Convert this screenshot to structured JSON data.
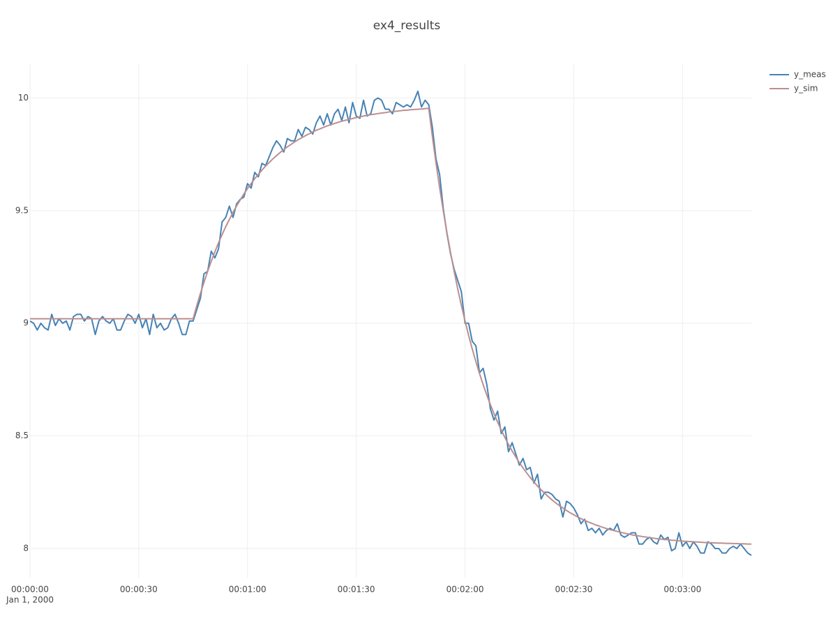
{
  "chart_data": {
    "type": "line",
    "title": "ex4_results",
    "x_date": "Jan 1, 2000",
    "x": [
      0,
      1,
      2,
      3,
      4,
      5,
      6,
      7,
      8,
      9,
      10,
      11,
      12,
      13,
      14,
      15,
      16,
      17,
      18,
      19,
      20,
      21,
      22,
      23,
      24,
      25,
      26,
      27,
      28,
      29,
      30,
      31,
      32,
      33,
      34,
      35,
      36,
      37,
      38,
      39,
      40,
      41,
      42,
      43,
      44,
      45,
      46,
      47,
      48,
      49,
      50,
      51,
      52,
      53,
      54,
      55,
      56,
      57,
      58,
      59,
      60,
      61,
      62,
      63,
      64,
      65,
      66,
      67,
      68,
      69,
      70,
      71,
      72,
      73,
      74,
      75,
      76,
      77,
      78,
      79,
      80,
      81,
      82,
      83,
      84,
      85,
      86,
      87,
      88,
      89,
      90,
      91,
      92,
      93,
      94,
      95,
      96,
      97,
      98,
      99,
      100,
      101,
      102,
      103,
      104,
      105,
      106,
      107,
      108,
      109,
      110,
      111,
      112,
      113,
      114,
      115,
      116,
      117,
      118,
      119,
      120,
      121,
      122,
      123,
      124,
      125,
      126,
      127,
      128,
      129,
      130,
      131,
      132,
      133,
      134,
      135,
      136,
      137,
      138,
      139,
      140,
      141,
      142,
      143,
      144,
      145,
      146,
      147,
      148,
      149,
      150,
      151,
      152,
      153,
      154,
      155,
      156,
      157,
      158,
      159,
      160,
      161,
      162,
      163,
      164,
      165,
      166,
      167,
      168,
      169,
      170,
      171,
      172,
      173,
      174,
      175,
      176,
      177,
      178,
      179,
      180,
      181,
      182,
      183,
      184,
      185,
      186,
      187,
      188,
      189,
      190,
      191,
      192,
      193,
      194,
      195,
      196,
      197,
      198,
      199
    ],
    "series": [
      {
        "name": "y_meas",
        "color": "#4682b4",
        "values": [
          9.01,
          9.0,
          8.97,
          9.0,
          8.98,
          8.97,
          9.04,
          8.99,
          9.02,
          9.0,
          9.01,
          8.97,
          9.03,
          9.04,
          9.04,
          9.01,
          9.03,
          9.02,
          8.95,
          9.01,
          9.03,
          9.01,
          9.0,
          9.02,
          8.97,
          8.97,
          9.01,
          9.04,
          9.03,
          9.0,
          9.04,
          8.98,
          9.02,
          8.95,
          9.04,
          8.98,
          9.0,
          8.97,
          8.98,
          9.02,
          9.04,
          9.0,
          8.95,
          8.95,
          9.01,
          9.01,
          9.06,
          9.11,
          9.22,
          9.23,
          9.32,
          9.29,
          9.33,
          9.45,
          9.47,
          9.52,
          9.47,
          9.53,
          9.55,
          9.56,
          9.62,
          9.6,
          9.67,
          9.65,
          9.71,
          9.7,
          9.74,
          9.78,
          9.81,
          9.79,
          9.76,
          9.82,
          9.81,
          9.81,
          9.86,
          9.83,
          9.87,
          9.86,
          9.84,
          9.89,
          9.92,
          9.88,
          9.93,
          9.88,
          9.93,
          9.95,
          9.9,
          9.96,
          9.89,
          9.98,
          9.92,
          9.91,
          9.99,
          9.92,
          9.93,
          9.99,
          10.0,
          9.99,
          9.95,
          9.95,
          9.93,
          9.98,
          9.97,
          9.96,
          9.97,
          9.96,
          9.99,
          10.03,
          9.96,
          9.99,
          9.97,
          9.87,
          9.73,
          9.66,
          9.51,
          9.4,
          9.31,
          9.24,
          9.19,
          9.14,
          9.0,
          9.0,
          8.92,
          8.9,
          8.78,
          8.8,
          8.73,
          8.62,
          8.57,
          8.61,
          8.51,
          8.54,
          8.43,
          8.47,
          8.42,
          8.37,
          8.4,
          8.35,
          8.36,
          8.29,
          8.33,
          8.22,
          8.25,
          8.25,
          8.24,
          8.22,
          8.21,
          8.14,
          8.21,
          8.2,
          8.18,
          8.15,
          8.11,
          8.13,
          8.08,
          8.09,
          8.07,
          8.09,
          8.06,
          8.08,
          8.09,
          8.08,
          8.11,
          8.06,
          8.05,
          8.06,
          8.07,
          8.07,
          8.02,
          8.02,
          8.04,
          8.05,
          8.03,
          8.02,
          8.06,
          8.04,
          8.05,
          7.99,
          8.0,
          8.07,
          8.01,
          8.03,
          8.0,
          8.03,
          8.01,
          7.98,
          7.98,
          8.03,
          8.02,
          8.0,
          8.0,
          7.98,
          7.98,
          8.0,
          8.01,
          8.0,
          8.02,
          8.0,
          7.98,
          7.97
        ]
      },
      {
        "name": "y_sim",
        "color": "#bc8f8f",
        "values": [
          9.02,
          9.02,
          9.02,
          9.02,
          9.02,
          9.02,
          9.02,
          9.02,
          9.02,
          9.02,
          9.02,
          9.02,
          9.02,
          9.02,
          9.02,
          9.02,
          9.02,
          9.02,
          9.02,
          9.02,
          9.02,
          9.02,
          9.02,
          9.02,
          9.02,
          9.02,
          9.02,
          9.02,
          9.02,
          9.02,
          9.02,
          9.02,
          9.02,
          9.02,
          9.02,
          9.02,
          9.02,
          9.02,
          9.02,
          9.02,
          9.02,
          9.02,
          9.02,
          9.02,
          9.02,
          9.02,
          9.078,
          9.132,
          9.182,
          9.23,
          9.275,
          9.317,
          9.357,
          9.394,
          9.429,
          9.461,
          9.492,
          9.521,
          9.548,
          9.574,
          9.598,
          9.62,
          9.642,
          9.661,
          9.68,
          9.698,
          9.714,
          9.73,
          9.744,
          9.758,
          9.771,
          9.783,
          9.794,
          9.805,
          9.815,
          9.824,
          9.833,
          9.841,
          9.849,
          9.857,
          9.863,
          9.87,
          9.876,
          9.882,
          9.887,
          9.892,
          9.897,
          9.901,
          9.905,
          9.909,
          9.913,
          9.916,
          9.92,
          9.923,
          9.926,
          9.928,
          9.931,
          9.933,
          9.935,
          9.938,
          9.94,
          9.941,
          9.943,
          9.945,
          9.946,
          9.948,
          9.949,
          9.95,
          9.951,
          9.953,
          9.954,
          9.829,
          9.712,
          9.602,
          9.5,
          9.404,
          9.315,
          9.231,
          9.152,
          9.079,
          9.011,
          8.946,
          8.886,
          8.83,
          8.777,
          8.728,
          8.682,
          8.639,
          8.599,
          8.561,
          8.526,
          8.493,
          8.462,
          8.433,
          8.407,
          8.381,
          8.358,
          8.336,
          8.315,
          8.296,
          8.277,
          8.261,
          8.245,
          8.23,
          8.216,
          8.203,
          8.191,
          8.18,
          8.169,
          8.159,
          8.15,
          8.141,
          8.133,
          8.125,
          8.118,
          8.112,
          8.105,
          8.1,
          8.094,
          8.089,
          8.084,
          8.08,
          8.076,
          8.072,
          8.068,
          8.065,
          8.061,
          8.058,
          8.056,
          8.053,
          8.051,
          8.048,
          8.046,
          8.044,
          8.042,
          8.04,
          8.039,
          8.037,
          8.036,
          8.034,
          8.033,
          8.032,
          8.031,
          8.03,
          8.029,
          8.028,
          8.027,
          8.026,
          8.026,
          8.025,
          8.024,
          8.024,
          8.023,
          8.023,
          8.022,
          8.022,
          8.021,
          8.021,
          8.02,
          8.02
        ]
      }
    ],
    "xlim": [
      0,
      199
    ],
    "ylim": [
      7.87,
      10.15
    ],
    "xticks": [
      {
        "value": 0,
        "label": "00:00:00"
      },
      {
        "value": 30,
        "label": "00:00:30"
      },
      {
        "value": 60,
        "label": "00:01:00"
      },
      {
        "value": 90,
        "label": "00:01:30"
      },
      {
        "value": 120,
        "label": "00:02:00"
      },
      {
        "value": 150,
        "label": "00:02:30"
      },
      {
        "value": 180,
        "label": "00:03:00"
      }
    ],
    "yticks": [
      8,
      8.5,
      9,
      9.5,
      10
    ],
    "grid": true,
    "legend": "top-right"
  }
}
